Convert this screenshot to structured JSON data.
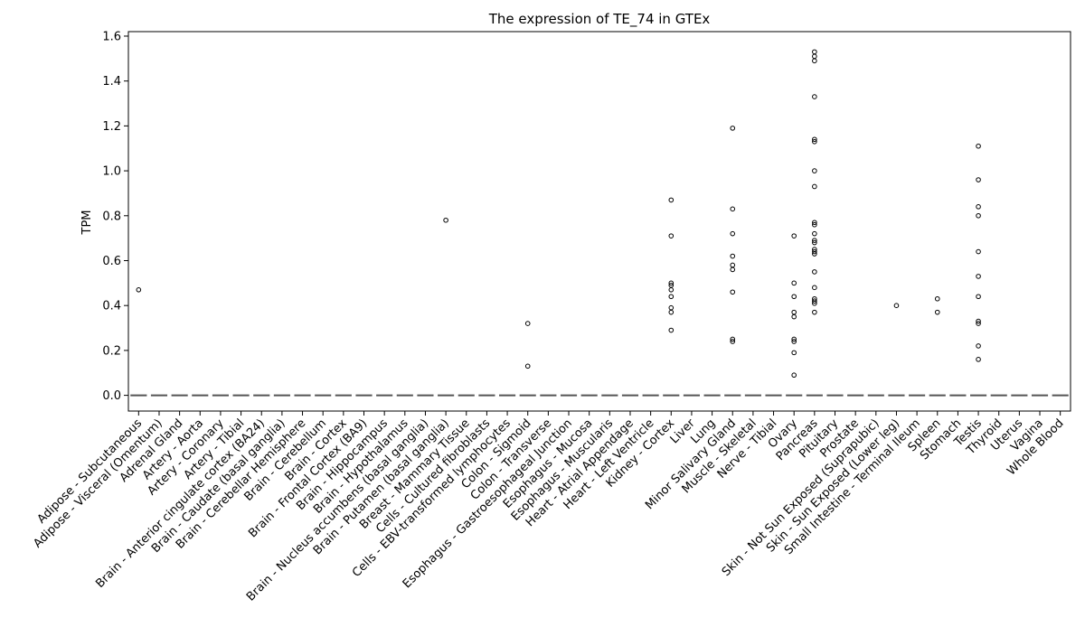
{
  "chart_data": {
    "type": "scatter",
    "title": "The expression of TE_74 in GTEx",
    "xlabel": "",
    "ylabel": "TPM",
    "ylim": [
      -0.07,
      1.62
    ],
    "yticks": [
      0.0,
      0.2,
      0.4,
      0.6,
      0.8,
      1.0,
      1.2,
      1.4,
      1.6
    ],
    "ytick_labels": [
      "0.0",
      "0.2",
      "0.4",
      "0.6",
      "0.8",
      "1.0",
      "1.2",
      "1.4",
      "1.6"
    ],
    "grid": false,
    "categories": [
      "Adipose - Subcutaneous",
      "Adipose - Visceral (Omentum)",
      "Adrenal Gland",
      "Artery - Aorta",
      "Artery - Coronary",
      "Artery - Tibial",
      "Brain - Anterior cingulate cortex (BA24)",
      "Brain - Caudate (basal ganglia)",
      "Brain - Cerebellar Hemisphere",
      "Brain - Cerebellum",
      "Brain - Cortex",
      "Brain - Frontal Cortex (BA9)",
      "Brain - Hippocampus",
      "Brain - Hypothalamus",
      "Brain - Nucleus accumbens (basal ganglia)",
      "Brain - Putamen (basal ganglia)",
      "Breast - Mammary Tissue",
      "Cells - Cultured fibroblasts",
      "Cells - EBV-transformed lymphocytes",
      "Colon - Sigmoid",
      "Colon - Transverse",
      "Esophagus - Gastroesophageal Junction",
      "Esophagus - Mucosa",
      "Esophagus - Muscularis",
      "Heart - Atrial Appendage",
      "Heart - Left Ventricle",
      "Kidney - Cortex",
      "Liver",
      "Lung",
      "Minor Salivary Gland",
      "Muscle - Skeletal",
      "Nerve - Tibial",
      "Ovary",
      "Pancreas",
      "Pituitary",
      "Prostate",
      "Skin - Not Sun Exposed (Suprapubic)",
      "Skin - Sun Exposed (Lower leg)",
      "Small Intestine - Terminal Ileum",
      "Spleen",
      "Stomach",
      "Testis",
      "Thyroid",
      "Uterus",
      "Vagina",
      "Whole Blood"
    ],
    "median_line_value": 0.0,
    "points": [
      {
        "category": "Adipose - Subcutaneous",
        "values": [
          0.47
        ]
      },
      {
        "category": "Brain - Putamen (basal ganglia)",
        "values": [
          0.78
        ]
      },
      {
        "category": "Colon - Sigmoid",
        "values": [
          0.32,
          0.13
        ]
      },
      {
        "category": "Kidney - Cortex",
        "values": [
          0.87,
          0.71,
          0.5,
          0.49,
          0.47,
          0.44,
          0.39,
          0.37,
          0.29
        ]
      },
      {
        "category": "Minor Salivary Gland",
        "values": [
          1.19,
          0.83,
          0.72,
          0.62,
          0.58,
          0.56,
          0.46,
          0.25,
          0.24
        ]
      },
      {
        "category": "Ovary",
        "values": [
          0.71,
          0.5,
          0.44,
          0.37,
          0.35,
          0.25,
          0.24,
          0.19,
          0.09
        ]
      },
      {
        "category": "Pancreas",
        "values": [
          1.53,
          1.51,
          1.49,
          1.33,
          1.14,
          1.13,
          1.0,
          0.93,
          0.77,
          0.76,
          0.72,
          0.69,
          0.68,
          0.65,
          0.64,
          0.63,
          0.55,
          0.48,
          0.43,
          0.42,
          0.41,
          0.37
        ]
      },
      {
        "category": "Skin - Sun Exposed (Lower leg)",
        "values": [
          0.4
        ]
      },
      {
        "category": "Spleen",
        "values": [
          0.43,
          0.37
        ]
      },
      {
        "category": "Testis",
        "values": [
          1.11,
          0.96,
          0.84,
          0.8,
          0.64,
          0.53,
          0.44,
          0.33,
          0.32,
          0.22,
          0.16
        ]
      }
    ]
  }
}
